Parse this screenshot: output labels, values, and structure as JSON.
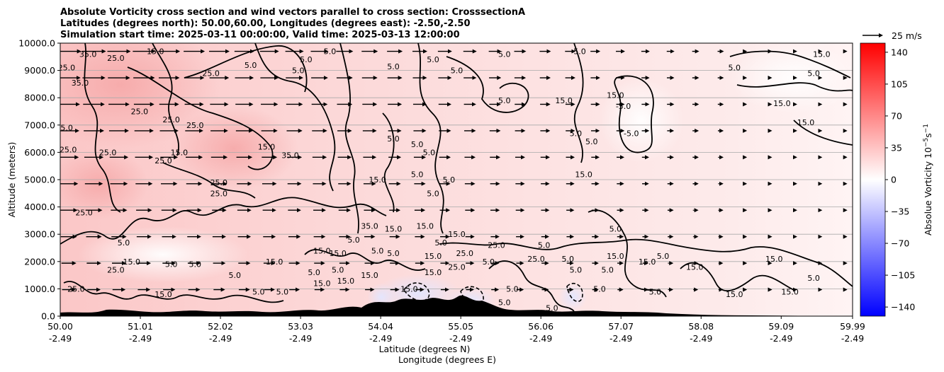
{
  "title": {
    "line1": "Absolute Vorticity cross section and wind vectors parallel to cross section: CrosssectionA",
    "line2": "Latitudes (degrees north): 50.00,60.00, Longitudes (degrees east): -2.50,-2.50",
    "line3": "Simulation start time: 2025-03-11 00:00:00, Valid time: 2025-03-13 12:00:00"
  },
  "quiver_key": {
    "label": "25 m/s"
  },
  "colorbar": {
    "label": "Absolue Vorticity 10",
    "label_units_exponent": "−5",
    "label_units_tail": "s",
    "label_units_exponent2": "−1",
    "range": [
      -150,
      150
    ],
    "ticks": [
      "140",
      "105",
      "70",
      "35",
      "0",
      "−35",
      "−70",
      "−105",
      "−140"
    ],
    "tick_values": [
      140,
      105,
      70,
      35,
      0,
      -35,
      -70,
      -105,
      -140
    ],
    "colors": {
      "low": "#0000ff",
      "mid": "#ffffff",
      "high": "#ff0000"
    }
  },
  "chart_data": {
    "type": "heatmap",
    "xlabel_line1": "Latitude (degrees N)",
    "xlabel_line2": "Longitude (degrees E)",
    "ylabel": "Altitude (meters)",
    "ylim": [
      0,
      10000
    ],
    "xlim": [
      50.0,
      59.99
    ],
    "y_ticks": [
      "0.0",
      "1000.0",
      "2000.0",
      "3000.0",
      "4000.0",
      "5000.0",
      "6000.0",
      "7000.0",
      "8000.0",
      "9000.0",
      "10000.0"
    ],
    "y_tick_values": [
      0,
      1000,
      2000,
      3000,
      4000,
      5000,
      6000,
      7000,
      8000,
      9000,
      10000
    ],
    "x_ticks": [
      {
        "lat": "50.00",
        "lon": "-2.49"
      },
      {
        "lat": "51.01",
        "lon": "-2.49"
      },
      {
        "lat": "52.02",
        "lon": "-2.49"
      },
      {
        "lat": "53.03",
        "lon": "-2.49"
      },
      {
        "lat": "54.04",
        "lon": "-2.49"
      },
      {
        "lat": "55.05",
        "lon": "-2.49"
      },
      {
        "lat": "56.06",
        "lon": "-2.49"
      },
      {
        "lat": "57.07",
        "lon": "-2.49"
      },
      {
        "lat": "58.08",
        "lon": "-2.49"
      },
      {
        "lat": "59.09",
        "lon": "-2.49"
      },
      {
        "lat": "59.99",
        "lon": "-2.49"
      }
    ],
    "x_tick_values": [
      50.0,
      51.01,
      52.02,
      53.03,
      54.04,
      55.05,
      56.06,
      57.07,
      58.08,
      59.09,
      59.99
    ],
    "grid": "horizontal",
    "contour_levels_labeled": [
      "-5.0",
      "5.0",
      "15.0",
      "25.0",
      "35.0"
    ],
    "contour_labels": [
      {
        "text": "25.0",
        "lat": 50.7,
        "alt": 9450
      },
      {
        "text": "15.0",
        "lat": 51.2,
        "alt": 9700
      },
      {
        "text": "35.0",
        "lat": 50.35,
        "alt": 9600
      },
      {
        "text": "25.0",
        "lat": 50.08,
        "alt": 9100
      },
      {
        "text": "35.0",
        "lat": 50.25,
        "alt": 8550
      },
      {
        "text": "25.0",
        "lat": 51.9,
        "alt": 8900
      },
      {
        "text": "25.0",
        "lat": 51.0,
        "alt": 7500
      },
      {
        "text": "25.0",
        "lat": 51.4,
        "alt": 7200
      },
      {
        "text": "25.0",
        "lat": 51.7,
        "alt": 7000
      },
      {
        "text": "25.0",
        "lat": 50.05,
        "alt": 6900
      },
      {
        "text": "25.0",
        "lat": 50.6,
        "alt": 6000
      },
      {
        "text": "25.0",
        "lat": 50.1,
        "alt": 6100
      },
      {
        "text": "15.0",
        "lat": 51.5,
        "alt": 6000
      },
      {
        "text": "25.0",
        "lat": 51.3,
        "alt": 5700
      },
      {
        "text": "15.0",
        "lat": 52.6,
        "alt": 6200
      },
      {
        "text": "35.0",
        "lat": 52.9,
        "alt": 5900
      },
      {
        "text": "25.0",
        "lat": 52.0,
        "alt": 4900
      },
      {
        "text": "25.0",
        "lat": 52.0,
        "alt": 4500
      },
      {
        "text": "25.0",
        "lat": 50.3,
        "alt": 3800
      },
      {
        "text": "5.0",
        "lat": 53.4,
        "alt": 9700
      },
      {
        "text": "5.0",
        "lat": 53.1,
        "alt": 9400
      },
      {
        "text": "5.0",
        "lat": 52.4,
        "alt": 9200
      },
      {
        "text": "5.0",
        "lat": 53.0,
        "alt": 9000
      },
      {
        "text": "5.0",
        "lat": 54.7,
        "alt": 9400
      },
      {
        "text": "5.0",
        "lat": 55.0,
        "alt": 9000
      },
      {
        "text": "5.0",
        "lat": 55.6,
        "alt": 9600
      },
      {
        "text": "5.0",
        "lat": 54.2,
        "alt": 9150
      },
      {
        "text": "5.0",
        "lat": 55.6,
        "alt": 7900
      },
      {
        "text": "15.0",
        "lat": 56.35,
        "alt": 7900
      },
      {
        "text": "5.0",
        "lat": 56.55,
        "alt": 9700
      },
      {
        "text": "5.0",
        "lat": 54.2,
        "alt": 6500
      },
      {
        "text": "5.0",
        "lat": 54.5,
        "alt": 6300
      },
      {
        "text": "5.0",
        "lat": 54.65,
        "alt": 6000
      },
      {
        "text": "5.0",
        "lat": 56.5,
        "alt": 6700
      },
      {
        "text": "5.0",
        "lat": 56.7,
        "alt": 6400
      },
      {
        "text": "-5.0",
        "lat": 57.1,
        "alt": 7700
      },
      {
        "text": "-5.0",
        "lat": 57.2,
        "alt": 6700
      },
      {
        "text": "15.0",
        "lat": 56.6,
        "alt": 5200
      },
      {
        "text": "15.0",
        "lat": 57.0,
        "alt": 8100
      },
      {
        "text": "5.0",
        "lat": 58.5,
        "alt": 9100
      },
      {
        "text": "15.0",
        "lat": 59.6,
        "alt": 9600
      },
      {
        "text": "5.0",
        "lat": 59.5,
        "alt": 8900
      },
      {
        "text": "15.0",
        "lat": 59.1,
        "alt": 7800
      },
      {
        "text": "15.0",
        "lat": 59.4,
        "alt": 7100
      },
      {
        "text": "15.0",
        "lat": 54.0,
        "alt": 5000
      },
      {
        "text": "5.0",
        "lat": 54.5,
        "alt": 5200
      },
      {
        "text": "5.0",
        "lat": 54.7,
        "alt": 4500
      },
      {
        "text": "5.0",
        "lat": 54.9,
        "alt": 5000
      },
      {
        "text": "35.0",
        "lat": 53.9,
        "alt": 3300
      },
      {
        "text": "15.0",
        "lat": 54.2,
        "alt": 3200
      },
      {
        "text": "15.0",
        "lat": 54.6,
        "alt": 3300
      },
      {
        "text": "5.0",
        "lat": 54.8,
        "alt": 2700
      },
      {
        "text": "15.0",
        "lat": 55.0,
        "alt": 3000
      },
      {
        "text": "25.0",
        "lat": 55.5,
        "alt": 2600
      },
      {
        "text": "5.0",
        "lat": 53.7,
        "alt": 2800
      },
      {
        "text": "15.0",
        "lat": 53.5,
        "alt": 2300
      },
      {
        "text": "5.0",
        "lat": 54.0,
        "alt": 2400
      },
      {
        "text": "15.0",
        "lat": 53.3,
        "alt": 2400
      },
      {
        "text": "5.0",
        "lat": 54.2,
        "alt": 2300
      },
      {
        "text": "15.0",
        "lat": 54.7,
        "alt": 2200
      },
      {
        "text": "25.0",
        "lat": 55.1,
        "alt": 2300
      },
      {
        "text": "5.0",
        "lat": 56.1,
        "alt": 2600
      },
      {
        "text": "5.0",
        "lat": 57.0,
        "alt": 3200
      },
      {
        "text": "5.0",
        "lat": 55.4,
        "alt": 2000
      },
      {
        "text": "25.0",
        "lat": 56.0,
        "alt": 2100
      },
      {
        "text": "5.0",
        "lat": 56.4,
        "alt": 2100
      },
      {
        "text": "5.0",
        "lat": 56.5,
        "alt": 1700
      },
      {
        "text": "15.0",
        "lat": 57.0,
        "alt": 2200
      },
      {
        "text": "15.0",
        "lat": 57.4,
        "alt": 2000
      },
      {
        "text": "5.0",
        "lat": 57.6,
        "alt": 2200
      },
      {
        "text": "5.0",
        "lat": 56.9,
        "alt": 1700
      },
      {
        "text": "15.0",
        "lat": 58.0,
        "alt": 1800
      },
      {
        "text": "15.0",
        "lat": 59.0,
        "alt": 2100
      },
      {
        "text": "5.0",
        "lat": 59.5,
        "alt": 1400
      },
      {
        "text": "5.0",
        "lat": 50.8,
        "alt": 2700
      },
      {
        "text": "15.0",
        "lat": 50.9,
        "alt": 2000
      },
      {
        "text": "25.0",
        "lat": 50.7,
        "alt": 1700
      },
      {
        "text": "5.0",
        "lat": 51.4,
        "alt": 1900
      },
      {
        "text": "5.0",
        "lat": 51.7,
        "alt": 1900
      },
      {
        "text": "15.0",
        "lat": 52.7,
        "alt": 2000
      },
      {
        "text": "5.0",
        "lat": 52.2,
        "alt": 1500
      },
      {
        "text": "5.0",
        "lat": 53.5,
        "alt": 1700
      },
      {
        "text": "15.0",
        "lat": 53.9,
        "alt": 1500
      },
      {
        "text": "5.0",
        "lat": 53.2,
        "alt": 1600
      },
      {
        "text": "15.0",
        "lat": 53.6,
        "alt": 1300
      },
      {
        "text": "15.0",
        "lat": 54.7,
        "alt": 1600
      },
      {
        "text": "15.0",
        "lat": 53.3,
        "alt": 1200
      },
      {
        "text": "25.0",
        "lat": 55.0,
        "alt": 1800
      },
      {
        "text": "15.0",
        "lat": 51.3,
        "alt": 800
      },
      {
        "text": "25.0",
        "lat": 50.2,
        "alt": 1000
      },
      {
        "text": "5.0",
        "lat": 52.5,
        "alt": 900
      },
      {
        "text": "5.0",
        "lat": 52.8,
        "alt": 900
      },
      {
        "text": "15.0",
        "lat": 54.4,
        "alt": 1000
      },
      {
        "text": "5.0",
        "lat": 55.7,
        "alt": 1000
      },
      {
        "text": "5.0",
        "lat": 55.6,
        "alt": 500
      },
      {
        "text": "5.0",
        "lat": 56.2,
        "alt": 300
      },
      {
        "text": "5.0",
        "lat": 56.8,
        "alt": 1000
      },
      {
        "text": "5.0",
        "lat": 57.5,
        "alt": 900
      },
      {
        "text": "15.0",
        "lat": 58.5,
        "alt": 800
      },
      {
        "text": "15.0",
        "lat": 59.2,
        "alt": 900
      }
    ],
    "color_note": "Positive absolute vorticity shown in light red shading, higher (~35) near upper left, near 0-5 at right; small negative (blue) pockets near surface around 53.8-55.3 N"
  }
}
